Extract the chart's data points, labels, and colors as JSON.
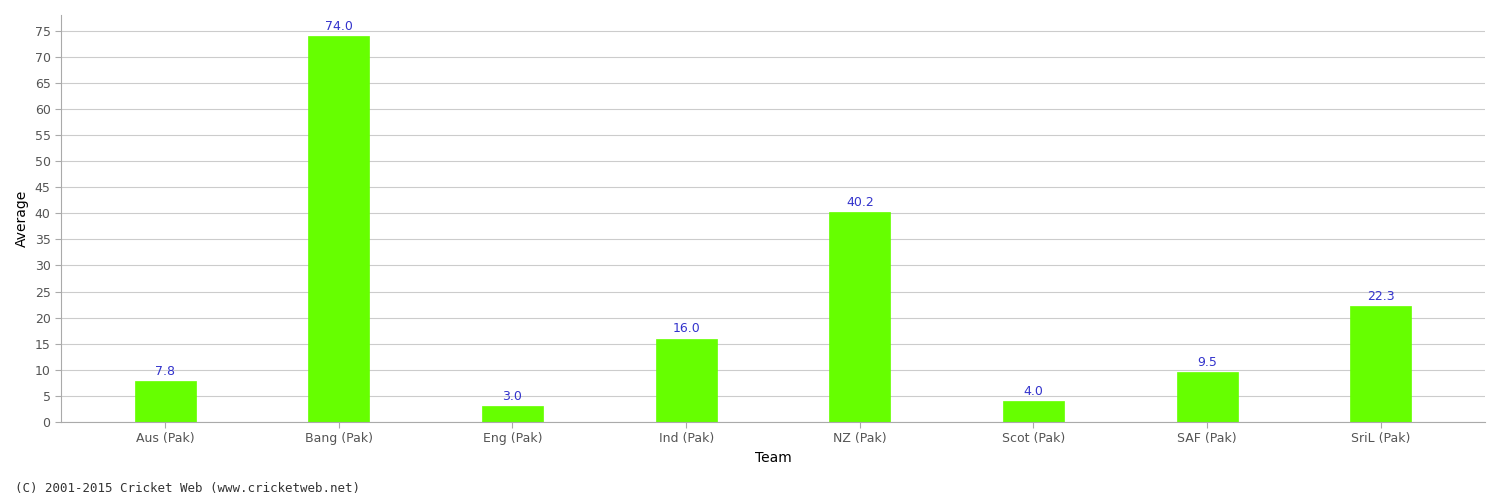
{
  "categories": [
    "Aus (Pak)",
    "Bang (Pak)",
    "Eng (Pak)",
    "Ind (Pak)",
    "NZ (Pak)",
    "Scot (Pak)",
    "SAF (Pak)",
    "SriL (Pak)"
  ],
  "values": [
    7.8,
    74.0,
    3.0,
    16.0,
    40.2,
    4.0,
    9.5,
    22.3
  ],
  "bar_color": "#66ff00",
  "bar_edge_color": "#66ff00",
  "value_label_color": "#3333cc",
  "value_label_fontsize": 9,
  "xlabel": "Team",
  "ylabel": "Average",
  "ylabel_fontsize": 10,
  "xlabel_fontsize": 10,
  "tick_label_fontsize": 9,
  "ylim": [
    0,
    78
  ],
  "yticks": [
    0,
    5,
    10,
    15,
    20,
    25,
    30,
    35,
    40,
    45,
    50,
    55,
    60,
    65,
    70,
    75
  ],
  "grid_color": "#cccccc",
  "background_color": "#ffffff",
  "footer_text": "(C) 2001-2015 Cricket Web (www.cricketweb.net)",
  "footer_fontsize": 9,
  "footer_color": "#333333",
  "bar_width": 0.35,
  "spine_color": "#aaaaaa",
  "tick_color": "#555555"
}
